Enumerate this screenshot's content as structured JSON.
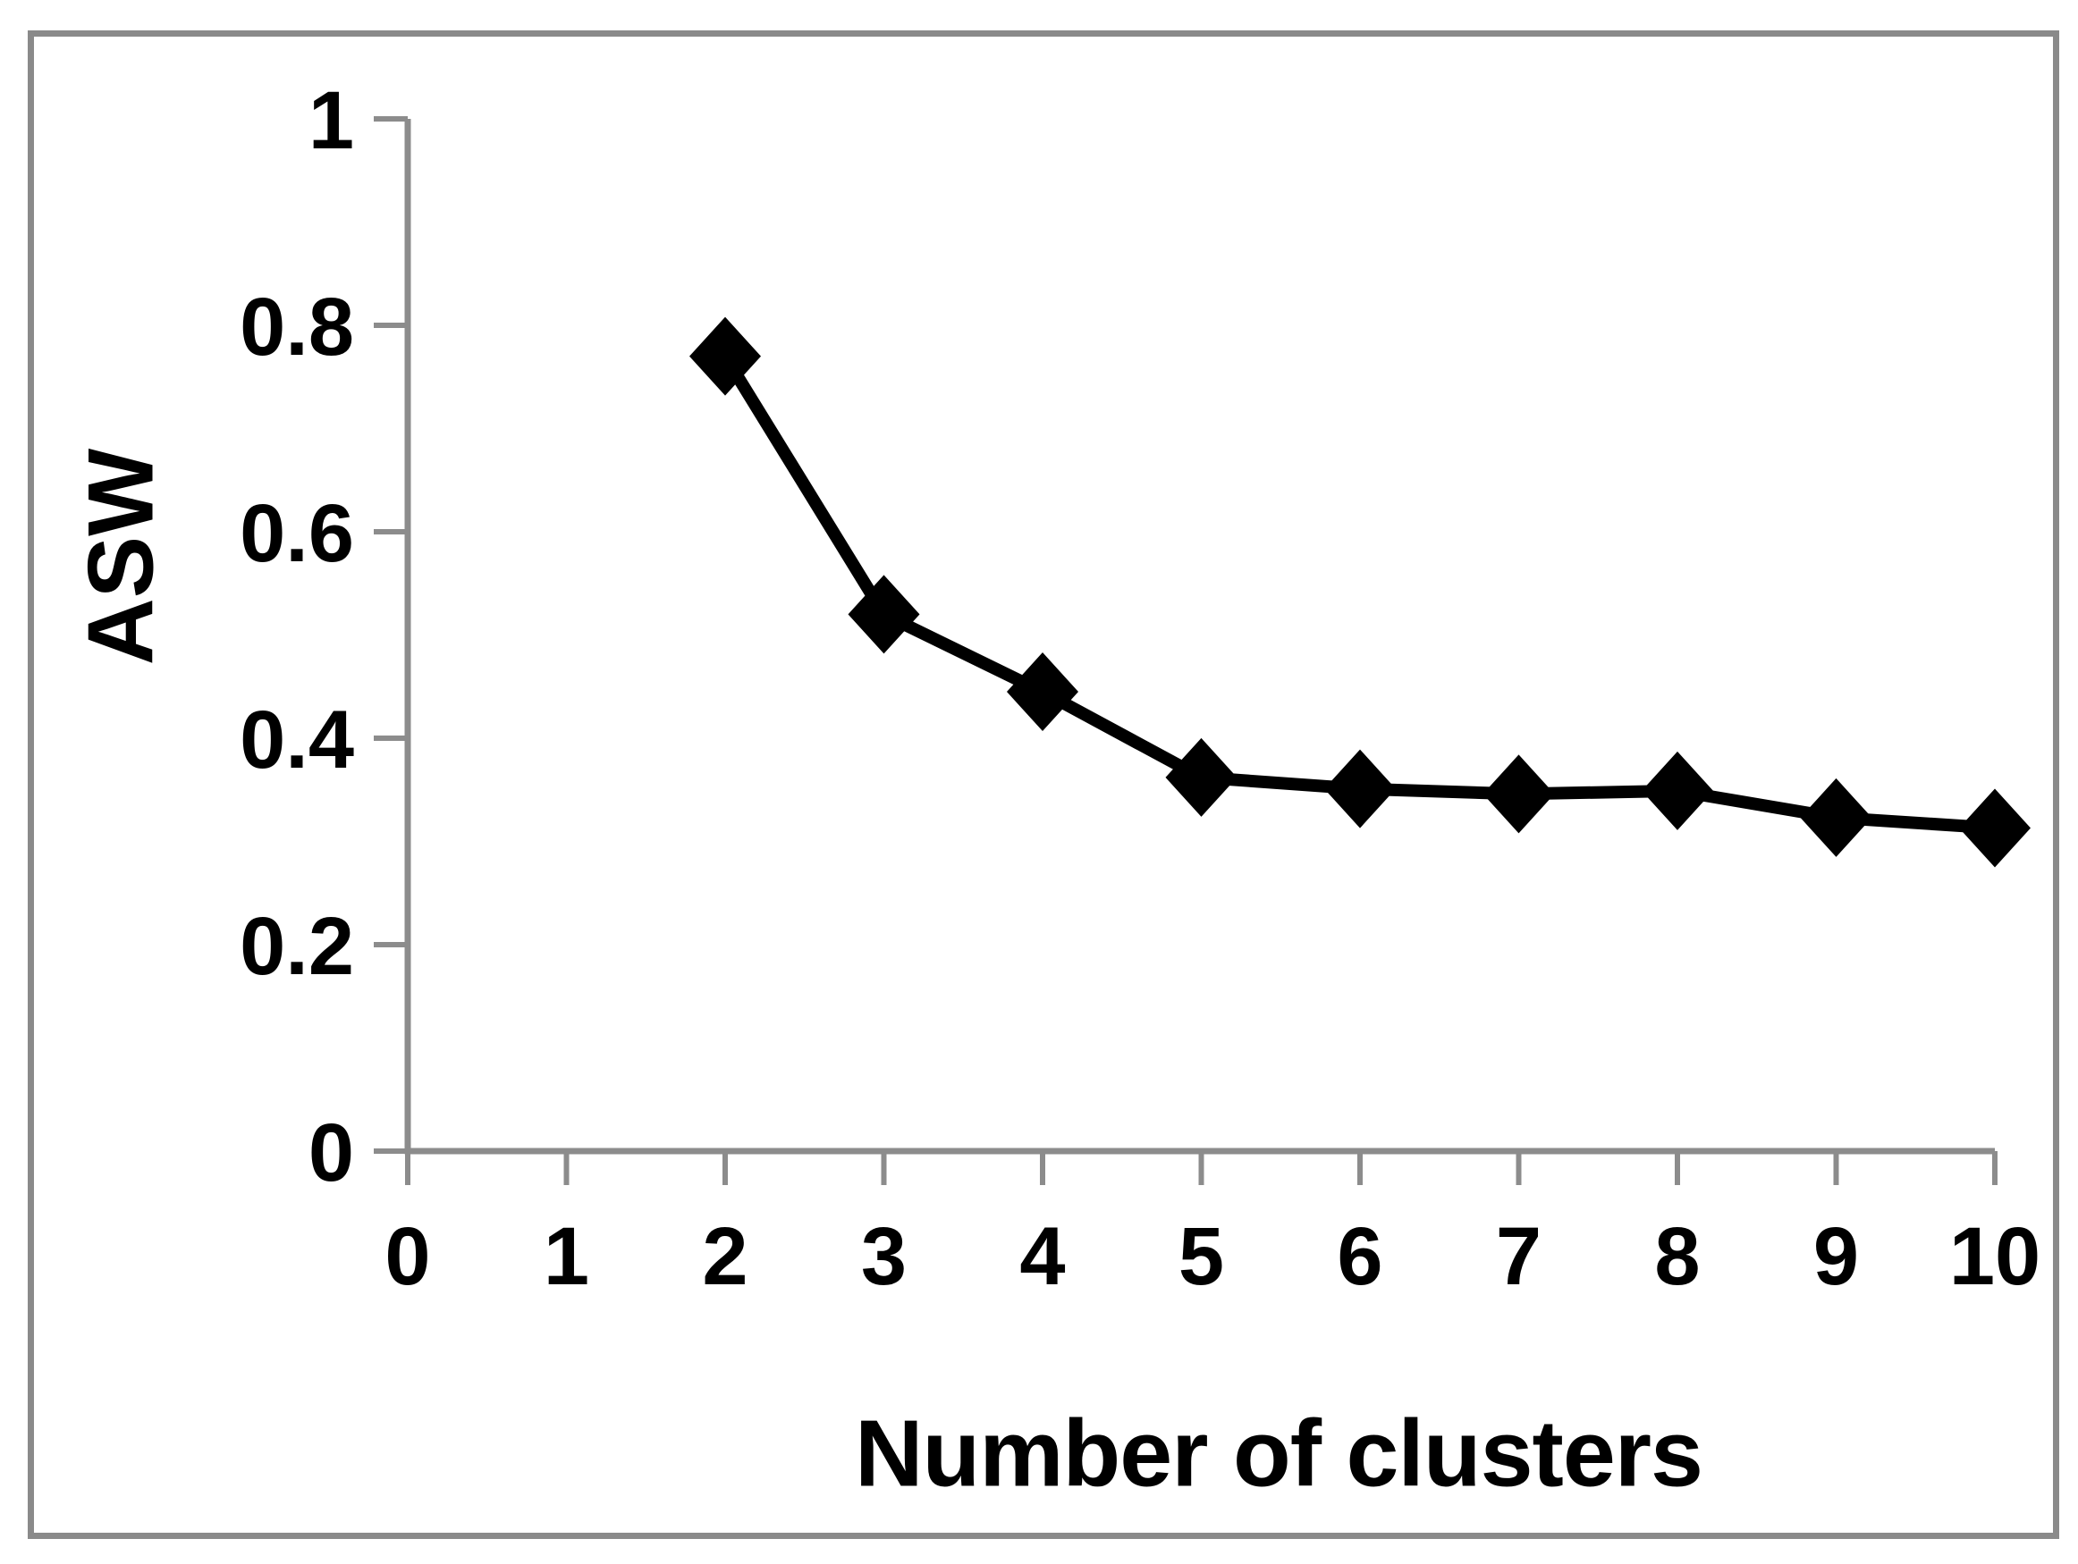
{
  "figure": {
    "background": "#ffffff",
    "border_color": "#8a8a8a"
  },
  "chart_data": {
    "type": "line",
    "title": "",
    "xlabel": "Number of clusters",
    "ylabel": "ASW",
    "x": [
      2,
      3,
      4,
      5,
      6,
      7,
      8,
      9,
      10
    ],
    "series": [
      {
        "name": "ASW",
        "values": [
          0.77,
          0.52,
          0.445,
          0.362,
          0.351,
          0.346,
          0.349,
          0.323,
          0.313
        ]
      }
    ],
    "xlim": [
      0,
      10
    ],
    "ylim": [
      0,
      1
    ],
    "x_ticks": [
      0,
      1,
      2,
      3,
      4,
      5,
      6,
      7,
      8,
      9,
      10
    ],
    "x_tick_labels": [
      "0",
      "1",
      "2",
      "3",
      "4",
      "5",
      "6",
      "7",
      "8",
      "9",
      "10"
    ],
    "y_ticks": [
      0,
      0.2,
      0.4,
      0.6,
      0.8,
      1
    ],
    "y_tick_labels": [
      "0",
      "0.2",
      "0.4",
      "0.6",
      "0.8",
      "1"
    ],
    "grid": false,
    "legend": "none",
    "marker": "diamond",
    "line_color": "#000000",
    "marker_color": "#000000",
    "axis_color": "#8c8c8c",
    "text_color": "#000000"
  }
}
